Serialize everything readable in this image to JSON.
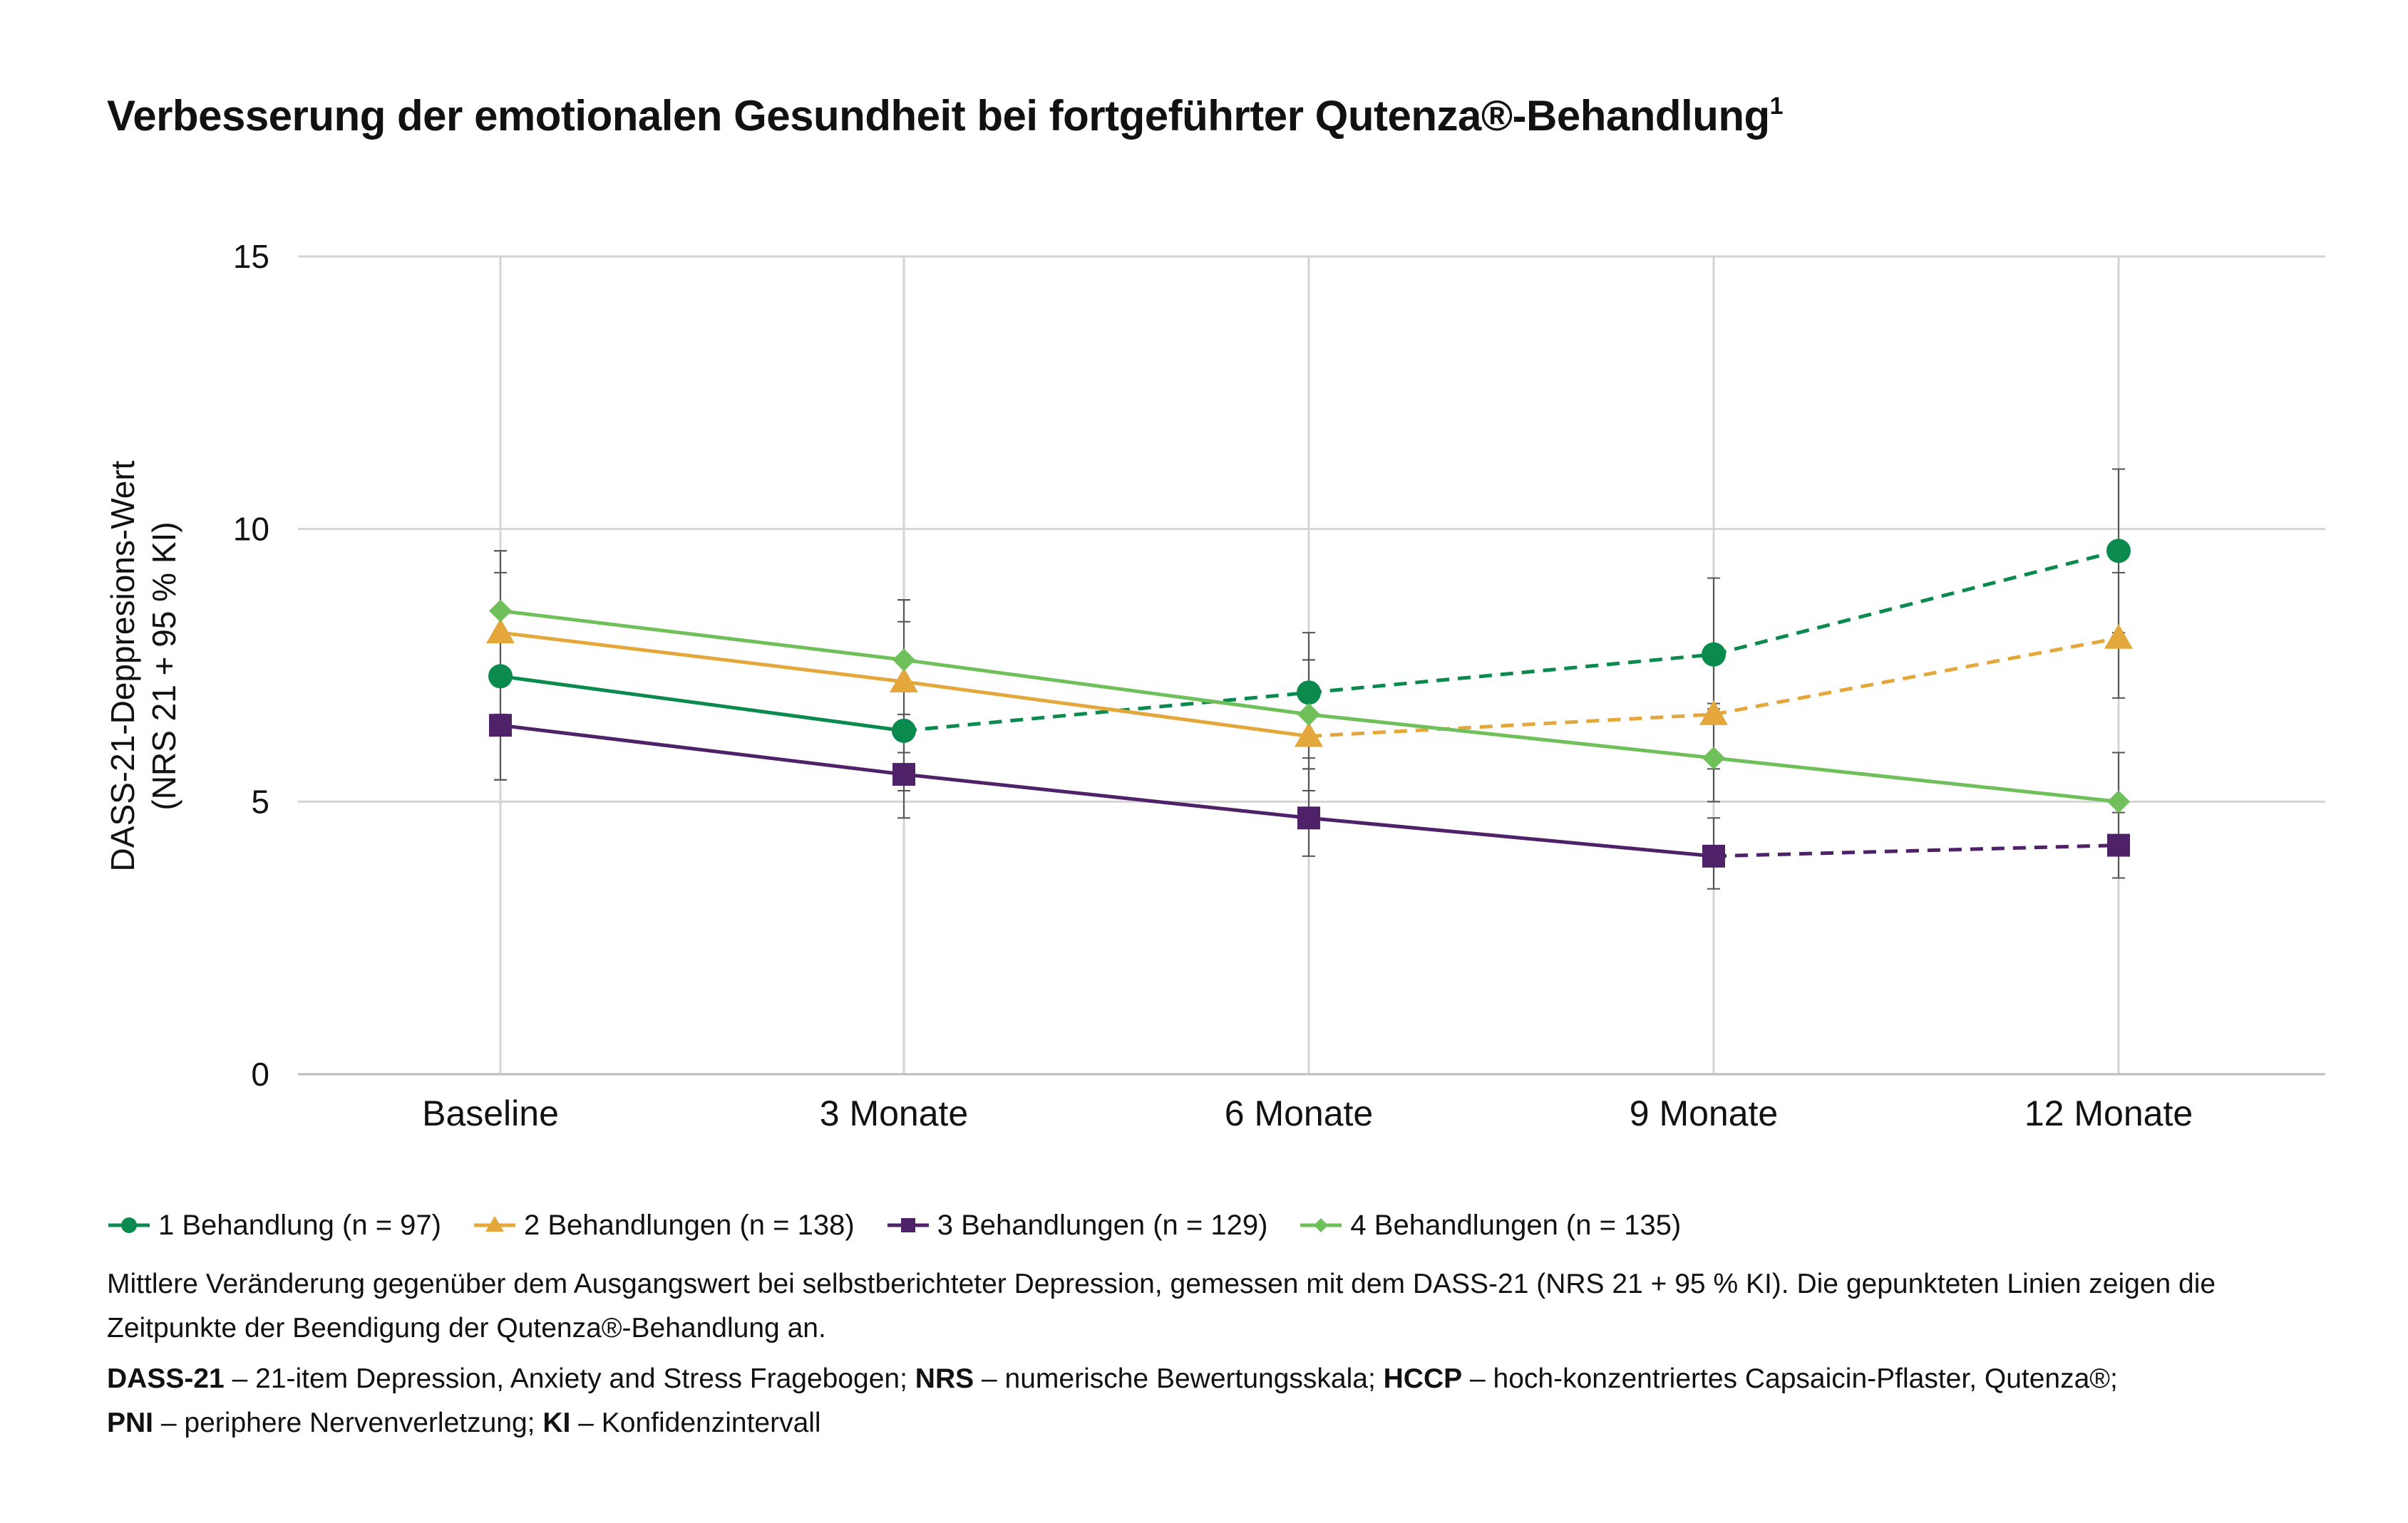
{
  "title": {
    "main": "Verbesserung der emotionalen Gesundheit bei fortgeführter Qutenza®-Behandlung",
    "footnote_marker": "1"
  },
  "chart_data": {
    "type": "line",
    "ylabel_line1": "DASS-21-Deppresions-Wert",
    "ylabel_line2": "(NRS 21 + 95 % KI)",
    "ylim": [
      0,
      15
    ],
    "yticks": [
      "0",
      "5",
      "10",
      "15"
    ],
    "categories": [
      "Baseline",
      "3 Monate",
      "6 Monate",
      "9 Monate",
      "12 Monate"
    ],
    "grid": true,
    "legend_position": "bottom",
    "series": [
      {
        "name": "1 Behandlung (n = 97)",
        "color": "#0b8a4e",
        "marker": "circle",
        "values": [
          7.3,
          6.3,
          7.0,
          7.7,
          9.6
        ],
        "ci_low": [
          5.4,
          5.2,
          5.8,
          6.7,
          8.1
        ],
        "ci_high": [
          9.2,
          8.3,
          8.1,
          9.1,
          11.1
        ],
        "dashed_from_index": 1
      },
      {
        "name": "2 Behandlungen (n = 138)",
        "color": "#e3a73c",
        "marker": "triangle",
        "values": [
          8.1,
          7.2,
          6.2,
          6.6,
          8.0
        ],
        "ci_low": [
          6.6,
          5.9,
          5.2,
          5.6,
          6.9
        ],
        "ci_high": [
          9.6,
          8.7,
          7.6,
          7.7,
          9.2
        ],
        "dashed_from_index": 2
      },
      {
        "name": "3 Behandlungen (n = 129)",
        "color": "#4e2168",
        "marker": "square",
        "values": [
          6.4,
          5.5,
          4.7,
          4.0,
          4.2
        ],
        "ci_low": [
          5.4,
          4.7,
          4.0,
          3.4,
          3.6
        ],
        "ci_high": [
          7.4,
          6.4,
          5.6,
          4.7,
          4.8
        ],
        "dashed_from_index": 3
      },
      {
        "name": "4 Behandlungen (n = 135)",
        "color": "#6fbf5a",
        "marker": "diamond",
        "values": [
          8.5,
          7.6,
          6.6,
          5.8,
          5.0
        ],
        "ci_low": [
          7.3,
          6.6,
          5.6,
          5.0,
          4.3
        ],
        "ci_high": [
          9.6,
          8.7,
          7.6,
          6.8,
          5.9
        ],
        "dashed_from_index": null
      }
    ]
  },
  "note": "Mittlere Veränderung gegenüber dem Ausgangswert bei selbstberichteter Depression, gemessen mit dem DASS-21 (NRS 21 + 95 % KI). Die gepunkteten Linien zeigen die Zeitpunkte der Beendigung der Qutenza®-Behandlung an.",
  "abbreviations": [
    {
      "term": "DASS-21",
      "def": "21-item Depression, Anxiety and Stress Fragebogen;"
    },
    {
      "term": "NRS",
      "def": "numerische Bewertungsskala;"
    },
    {
      "term": "HCCP",
      "def": "hoch-konzentriertes Capsaicin-Pflaster, Qutenza®;"
    },
    {
      "term": "PNI",
      "def": "periphere Nervenverletzung;"
    },
    {
      "term": "KI",
      "def": "Konfidenzintervall"
    }
  ],
  "separator": "–"
}
